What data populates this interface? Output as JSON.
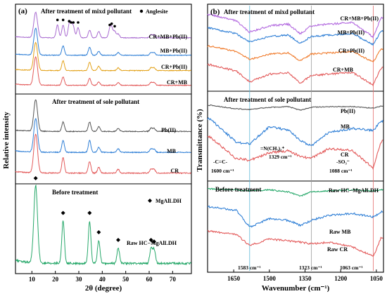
{
  "figure": {
    "panel_a": {
      "label": "(a)",
      "ylabel": "Relative intensity",
      "xlabel": "2θ (degree)",
      "xticks": [
        "10",
        "20",
        "30",
        "40",
        "50",
        "60",
        "70"
      ],
      "sections": [
        {
          "title": "After treatment of mixd pollutant",
          "legend": "Anglesite",
          "series": [
            {
              "label": "CR+MB+Pb(II)",
              "color": "#a86ad0"
            },
            {
              "label": "MB+Pb(II)",
              "color": "#2f7fd6"
            },
            {
              "label": "CR+Pb(II)",
              "color": "#e3a21a"
            },
            {
              "label": "CR+MB",
              "color": "#e35a5a"
            }
          ]
        },
        {
          "title": "After treatment of sole pollutant",
          "series": [
            {
              "label": "Pb(II)",
              "color": "#555555"
            },
            {
              "label": "MB",
              "color": "#2f7fd6"
            },
            {
              "label": "CR",
              "color": "#e35a5a"
            }
          ]
        },
        {
          "title": "Before treatment",
          "legend": "MgAlLDH",
          "series": [
            {
              "label": "Raw HC−MgAlLDH",
              "color": "#27a86a"
            }
          ]
        }
      ]
    },
    "panel_b": {
      "label": "(b)",
      "ylabel": "Transmittance (%)",
      "xlabel": "Wavenumber (cm⁻¹)",
      "xticks": [
        "1650",
        "1500",
        "1350",
        "1200",
        "1050"
      ],
      "sections": [
        {
          "title": "After treatment of mixd pollutant",
          "series": [
            {
              "label": "CR+MB+Pb(II)",
              "color": "#b36adf"
            },
            {
              "label": "MB+Pb(II)",
              "color": "#2f7fd6"
            },
            {
              "label": "CR+Pb(II)",
              "color": "#f07a2a"
            },
            {
              "label": "CR+MB",
              "color": "#e35a5a"
            }
          ]
        },
        {
          "title": "After treatment of sole pollutant",
          "series": [
            {
              "label": "Pb(II)",
              "color": "#555555"
            },
            {
              "label": "MB",
              "color": "#2f7fd6"
            },
            {
              "label": "CR",
              "color": "#e35a5a"
            }
          ],
          "annotations": [
            "=N(CH₃)₂⁺",
            "1329 cm⁻¹",
            "-C=C-",
            "1600 cm⁻¹",
            "-SO₃⁻",
            "1088 cm⁻¹"
          ]
        },
        {
          "title": "Before treatment",
          "series": [
            {
              "label": "Raw HC−MgAlLDH",
              "color": "#27a86a"
            },
            {
              "label": "Raw MB",
              "color": "#2f7fd6"
            },
            {
              "label": "Raw CR",
              "color": "#e35a5a"
            }
          ],
          "annotations": [
            "1583 cm⁻¹",
            "1323 cm⁻¹",
            "1063 cm⁻¹"
          ]
        }
      ]
    }
  },
  "chart_data": [
    {
      "type": "line",
      "panel": "(a)",
      "xlabel": "2θ (degree)",
      "ylabel": "Relative intensity",
      "xlim": [
        3,
        78
      ],
      "xticks": [
        10,
        20,
        30,
        40,
        50,
        60,
        70
      ],
      "series": [
        {
          "name": "CR+MB+Pb(II)",
          "x": [
            11.6,
            20.9,
            23.3,
            25.9,
            26.7,
            27.7,
            29.7,
            34.6,
            38.5,
            43.2,
            44.0,
            45.3,
            46.8,
            60.8,
            62.1
          ],
          "y": [
            1.0,
            0.5,
            0.5,
            0.45,
            0.4,
            0.4,
            0.4,
            0.3,
            0.25,
            0.3,
            0.35,
            0.25,
            0.15,
            0.12,
            0.12
          ]
        },
        {
          "name": "MB+Pb(II)",
          "x": [
            11.6,
            23.3,
            34.6,
            38.5,
            46.8,
            60.8,
            62.1
          ],
          "y": [
            1.0,
            0.35,
            0.3,
            0.15,
            0.1,
            0.1,
            0.1
          ]
        },
        {
          "name": "CR+Pb(II)",
          "x": [
            11.6,
            23.3,
            34.6,
            38.5,
            46.8,
            60.8,
            62.1
          ],
          "y": [
            1.0,
            0.35,
            0.3,
            0.15,
            0.1,
            0.1,
            0.1
          ]
        },
        {
          "name": "CR+MB",
          "x": [
            11.6,
            23.3,
            34.6,
            38.5,
            46.8,
            60.8,
            62.1
          ],
          "y": [
            1.0,
            0.3,
            0.25,
            0.12,
            0.1,
            0.1,
            0.1
          ]
        },
        {
          "name": "Pb(II)",
          "x": [
            11.6,
            23.3,
            34.6,
            38.5,
            46.8,
            60.8,
            62.1
          ],
          "y": [
            1.0,
            0.3,
            0.3,
            0.15,
            0.1,
            0.1,
            0.1
          ]
        },
        {
          "name": "MB",
          "x": [
            11.6,
            23.3,
            34.6,
            38.5,
            46.8,
            60.8,
            62.1
          ],
          "y": [
            1.0,
            0.35,
            0.35,
            0.15,
            0.1,
            0.1,
            0.1
          ]
        },
        {
          "name": "CR",
          "x": [
            11.6,
            23.3,
            34.6,
            38.5,
            46.8,
            60.8,
            62.1
          ],
          "y": [
            1.0,
            0.4,
            0.3,
            0.15,
            0.1,
            0.1,
            0.1
          ]
        },
        {
          "name": "Raw HC−MgAlLDH",
          "x": [
            11.6,
            23.3,
            34.6,
            38.5,
            46.8,
            60.8,
            62.1
          ],
          "y": [
            1.0,
            0.55,
            0.55,
            0.3,
            0.2,
            0.2,
            0.18
          ]
        }
      ],
      "markers": {
        "Anglesite": [
          20.9,
          23.3,
          25.9,
          26.7,
          27.7,
          29.7,
          43.2,
          44.0,
          45.3
        ],
        "MgAlLDH": [
          11.6,
          23.3,
          34.6,
          38.5,
          46.8,
          60.8,
          62.1
        ]
      }
    },
    {
      "type": "line",
      "panel": "(b)",
      "xlabel": "Wavenumber (cm⁻¹)",
      "ylabel": "Transmittance (%)",
      "xlim": [
        1760,
        1020
      ],
      "xticks": [
        1650,
        1500,
        1350,
        1200,
        1050
      ],
      "reference_lines": [
        1583,
        1323,
        1063
      ],
      "series": [
        {
          "name": "CR+MB+Pb(II)",
          "x": [
            1750,
            1640,
            1583,
            1500,
            1420,
            1370,
            1325,
            1250,
            1150,
            1063,
            1030
          ],
          "y": [
            0.9,
            0.7,
            0.35,
            0.55,
            0.6,
            0.3,
            0.55,
            0.6,
            0.65,
            0.2,
            0.8
          ]
        },
        {
          "name": "MB+Pb(II)",
          "x": [
            1750,
            1640,
            1583,
            1500,
            1420,
            1370,
            1325,
            1250,
            1150,
            1063,
            1030
          ],
          "y": [
            0.9,
            0.7,
            0.4,
            0.6,
            0.65,
            0.35,
            0.6,
            0.65,
            0.7,
            0.3,
            0.8
          ]
        },
        {
          "name": "CR+Pb(II)",
          "x": [
            1750,
            1640,
            1583,
            1500,
            1420,
            1370,
            1325,
            1250,
            1150,
            1063,
            1030
          ],
          "y": [
            0.9,
            0.7,
            0.4,
            0.6,
            0.65,
            0.35,
            0.6,
            0.65,
            0.7,
            0.3,
            0.8
          ]
        },
        {
          "name": "CR+MB",
          "x": [
            1750,
            1640,
            1583,
            1500,
            1420,
            1370,
            1325,
            1250,
            1150,
            1063,
            1030
          ],
          "y": [
            0.9,
            0.7,
            0.35,
            0.6,
            0.65,
            0.3,
            0.55,
            0.6,
            0.65,
            0.25,
            0.8
          ]
        },
        {
          "name": "Pb(II)",
          "x": [
            1750,
            1640,
            1583,
            1500,
            1420,
            1370,
            1325,
            1250,
            1150,
            1063,
            1030
          ],
          "y": [
            0.9,
            0.65,
            0.6,
            0.75,
            0.8,
            0.55,
            0.75,
            0.8,
            0.8,
            0.7,
            0.85
          ]
        },
        {
          "name": "MB",
          "x": [
            1750,
            1640,
            1583,
            1500,
            1420,
            1370,
            1325,
            1250,
            1150,
            1063,
            1030
          ],
          "y": [
            0.9,
            0.3,
            0.25,
            0.7,
            0.6,
            0.35,
            0.2,
            0.55,
            0.65,
            0.6,
            0.85
          ]
        },
        {
          "name": "CR",
          "x": [
            1750,
            1640,
            1583,
            1500,
            1420,
            1370,
            1325,
            1250,
            1150,
            1063,
            1030
          ],
          "y": [
            0.9,
            0.35,
            0.3,
            0.5,
            0.55,
            0.4,
            0.35,
            0.6,
            0.55,
            0.1,
            0.8
          ]
        },
        {
          "name": "Raw HC−MgAlLDH",
          "x": [
            1750,
            1640,
            1583,
            1500,
            1420,
            1370,
            1325,
            1250,
            1150,
            1063,
            1030
          ],
          "y": [
            0.9,
            0.85,
            0.8,
            0.85,
            0.75,
            0.55,
            0.75,
            0.8,
            0.85,
            0.8,
            0.85
          ]
        },
        {
          "name": "Raw MB",
          "x": [
            1750,
            1640,
            1583,
            1500,
            1420,
            1370,
            1325,
            1250,
            1150,
            1063,
            1030
          ],
          "y": [
            0.9,
            0.8,
            0.3,
            0.55,
            0.5,
            0.35,
            0.5,
            0.65,
            0.7,
            0.6,
            0.75
          ]
        },
        {
          "name": "Raw CR",
          "x": [
            1750,
            1640,
            1583,
            1500,
            1420,
            1370,
            1325,
            1250,
            1150,
            1063,
            1030
          ],
          "y": [
            0.9,
            0.8,
            0.45,
            0.65,
            0.6,
            0.55,
            0.5,
            0.55,
            0.4,
            0.1,
            0.7
          ]
        }
      ]
    }
  ]
}
